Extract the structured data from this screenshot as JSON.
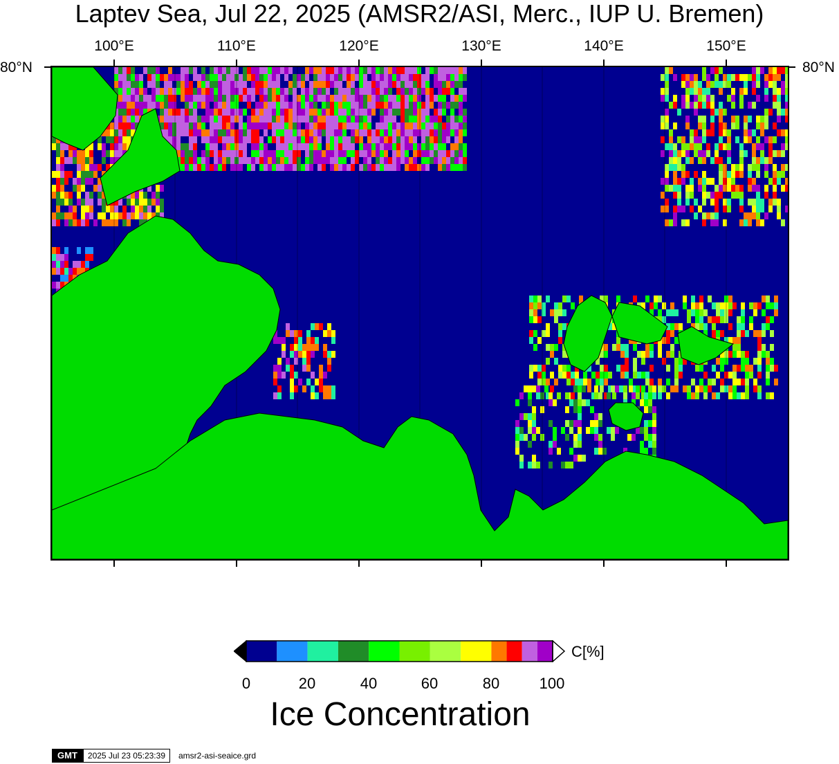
{
  "title": "Laptev Sea, Jul 22, 2025 (AMSR2/ASI, Merc., IUP U. Bremen)",
  "map": {
    "lon_labels": [
      "100°E",
      "110°E",
      "120°E",
      "130°E",
      "140°E",
      "150°E"
    ],
    "lat_label": "80°N",
    "ocean_color": "#000090",
    "land_color": "#00dc00"
  },
  "colorbar": {
    "unit": "C[%]",
    "tick_labels": [
      "0",
      "20",
      "40",
      "60",
      "80",
      "100"
    ],
    "title": "Ice Concentration",
    "colors": [
      "#000090",
      "#1e90ff",
      "#20f0a0",
      "#208c28",
      "#00ff00",
      "#78f000",
      "#aaff40",
      "#ffff00",
      "#ff7800",
      "#ff0000",
      "#c060e0",
      "#a000c8"
    ],
    "bounds": [
      0,
      10,
      20,
      30,
      40,
      50,
      60,
      70,
      80,
      85,
      90,
      95,
      100
    ]
  },
  "footer": {
    "logo": "GMT",
    "timestamp": "2025 Jul 23 05:23:39",
    "filename": "amsr2-asi-seaice.grd"
  }
}
